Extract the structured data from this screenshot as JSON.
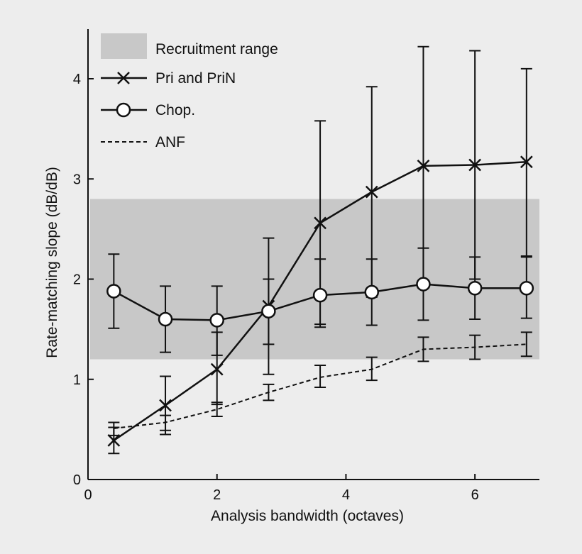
{
  "chart_data": {
    "type": "line",
    "xlabel": "Analysis bandwidth (octaves)",
    "ylabel": "Rate-matching slope (dB/dB)",
    "xlim": [
      0,
      7
    ],
    "ylim": [
      0,
      4.5
    ],
    "xticks": [
      0,
      2,
      4,
      6
    ],
    "yticks": [
      0,
      1,
      2,
      3,
      4
    ],
    "x_tick_labels": [
      "0",
      "2",
      "4",
      "6"
    ],
    "y_tick_labels": [
      "0",
      "1",
      "2",
      "3",
      "4"
    ],
    "grid": false,
    "legend_position": "top-left",
    "shaded_band": {
      "name": "Recruitment range",
      "y0": 1.2,
      "y1": 2.8,
      "color": "#c8c8c8"
    },
    "series": [
      {
        "name": "Pri and PriN",
        "marker": "x",
        "line": "solid",
        "x": [
          0.4,
          1.2,
          2.0,
          2.8,
          3.6,
          4.4,
          5.2,
          6.0,
          6.8
        ],
        "y": [
          0.39,
          0.74,
          1.1,
          1.73,
          2.56,
          2.87,
          3.13,
          3.14,
          3.17
        ],
        "err_low": [
          0.26,
          0.45,
          0.75,
          1.05,
          1.55,
          1.82,
          1.95,
          2.0,
          2.23
        ],
        "err_high": [
          0.52,
          1.03,
          1.47,
          2.41,
          3.58,
          3.92,
          4.32,
          4.28,
          4.1
        ]
      },
      {
        "name": "Chop.",
        "marker": "o",
        "line": "solid",
        "x": [
          0.4,
          1.2,
          2.0,
          2.8,
          3.6,
          4.4,
          5.2,
          6.0,
          6.8
        ],
        "y": [
          1.88,
          1.6,
          1.59,
          1.68,
          1.84,
          1.87,
          1.95,
          1.91,
          1.91
        ],
        "err_low": [
          1.51,
          1.27,
          1.24,
          1.35,
          1.52,
          1.54,
          1.59,
          1.6,
          1.61
        ],
        "err_high": [
          2.25,
          1.93,
          1.93,
          2.0,
          2.2,
          2.2,
          2.31,
          2.22,
          2.22
        ]
      },
      {
        "name": "ANF",
        "marker": "none",
        "line": "dashed",
        "x": [
          0.4,
          1.2,
          2.0,
          2.8,
          3.6,
          4.4,
          5.2,
          6.0,
          6.8
        ],
        "y": [
          0.51,
          0.57,
          0.7,
          0.87,
          1.02,
          1.1,
          1.3,
          1.32,
          1.35
        ],
        "err_low": [
          0.44,
          0.49,
          0.63,
          0.79,
          0.92,
          0.99,
          1.18,
          1.2,
          1.23
        ],
        "err_high": [
          0.57,
          0.64,
          0.77,
          0.95,
          1.14,
          1.22,
          1.42,
          1.44,
          1.47
        ]
      }
    ]
  }
}
